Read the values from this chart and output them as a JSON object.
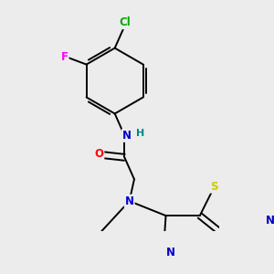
{
  "bg_color": "#ececec",
  "atom_colors": {
    "N": "#0000cc",
    "O": "#ff0000",
    "S": "#cccc00",
    "Cl": "#00aa00",
    "F": "#ff00ff",
    "H": "#008888",
    "C": "#000000"
  },
  "bond_width": 1.4,
  "dbo": 0.015
}
